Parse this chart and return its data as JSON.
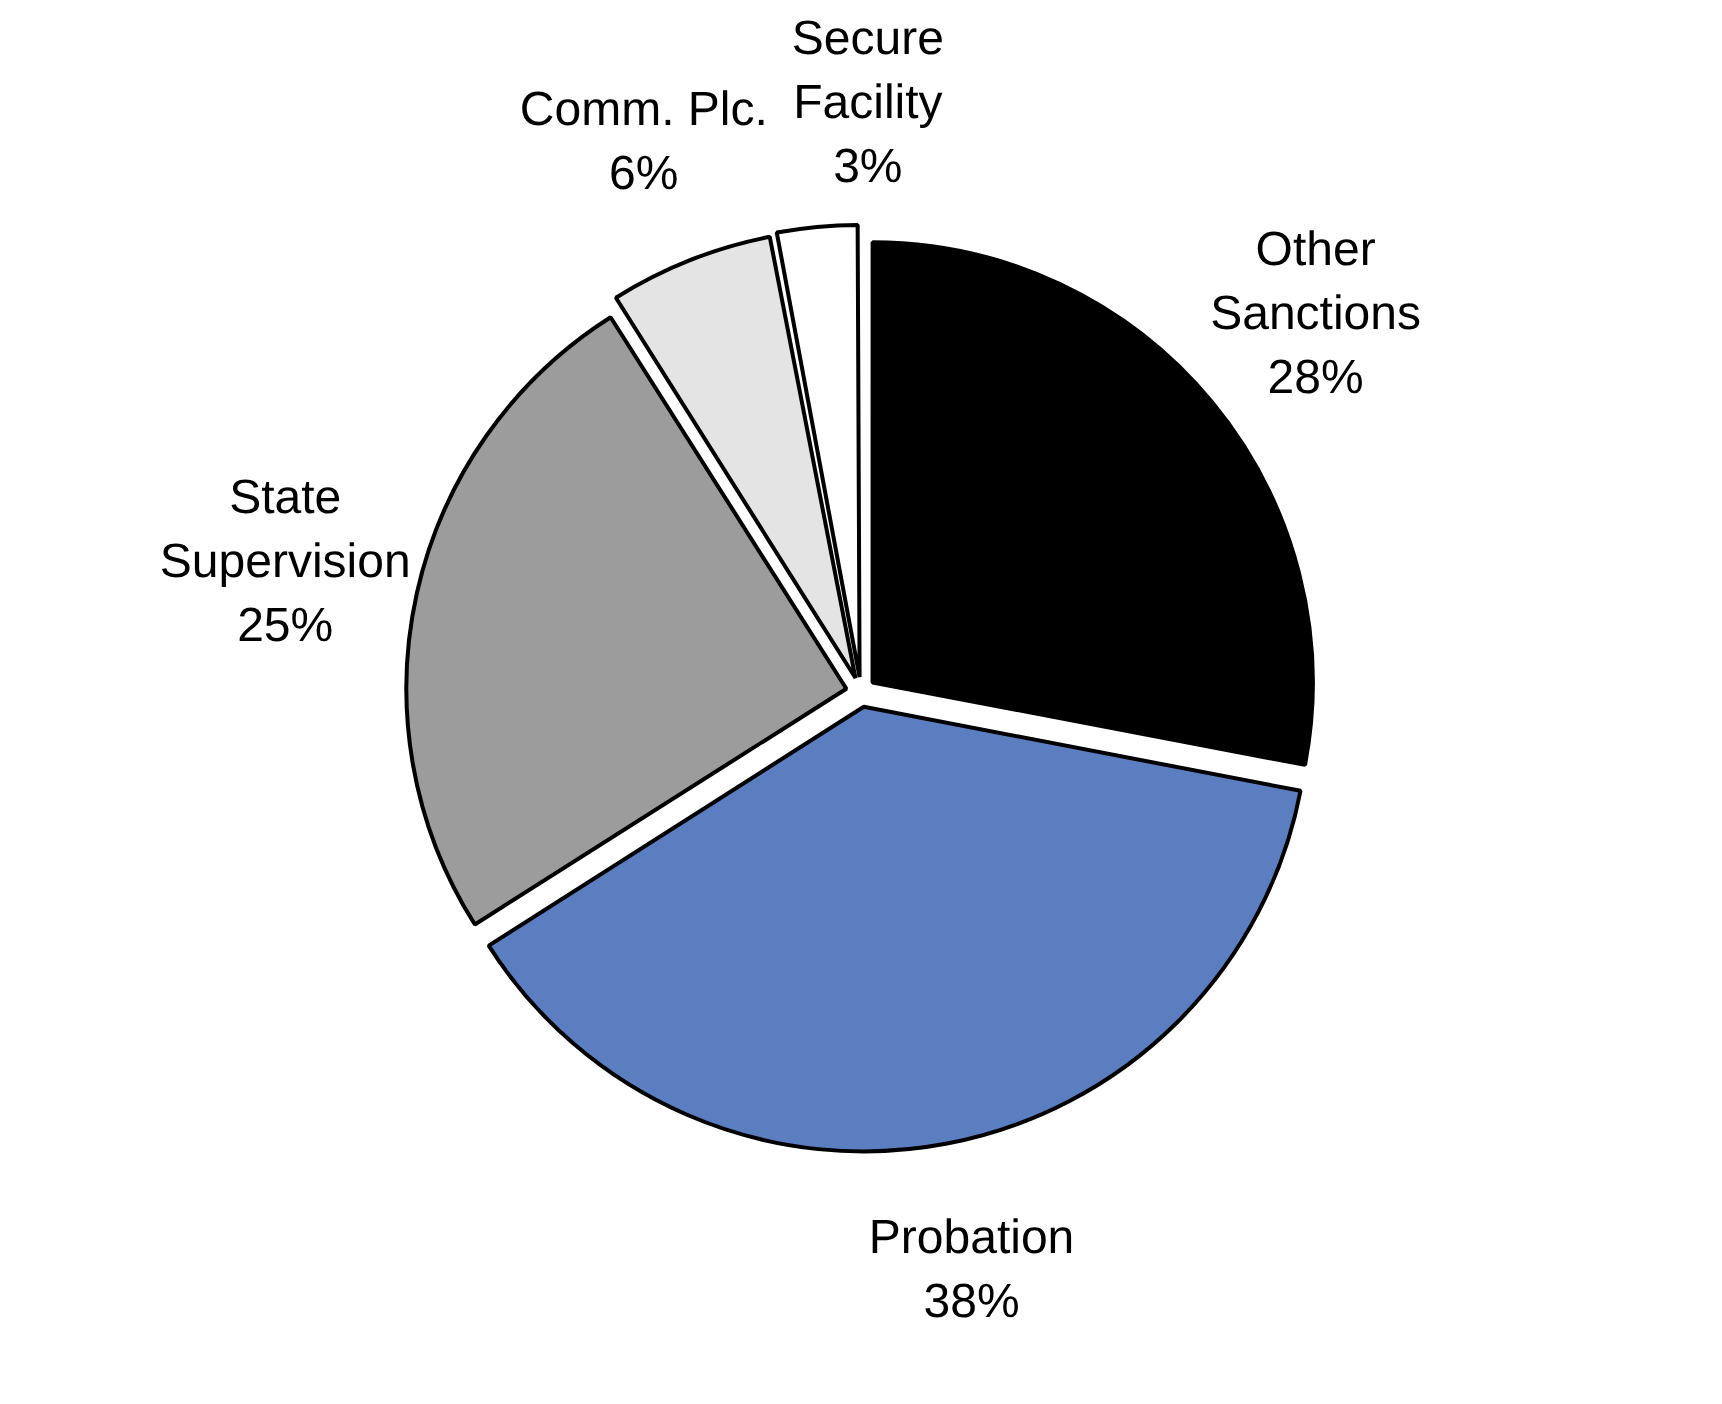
{
  "chart_data": {
    "type": "pie",
    "categories": [
      "Other Sanctions",
      "Probation",
      "State Supervision",
      "Comm. Plc.",
      "Secure Facility"
    ],
    "values": [
      28,
      38,
      25,
      6,
      3
    ],
    "value_labels": [
      "28%",
      "38%",
      "25%",
      "6%",
      "3%"
    ],
    "colors": [
      "#000000",
      "#5a7ec0",
      "#9c9c9c",
      "#e4e4e4",
      "#ffffff"
    ],
    "legend": false
  }
}
